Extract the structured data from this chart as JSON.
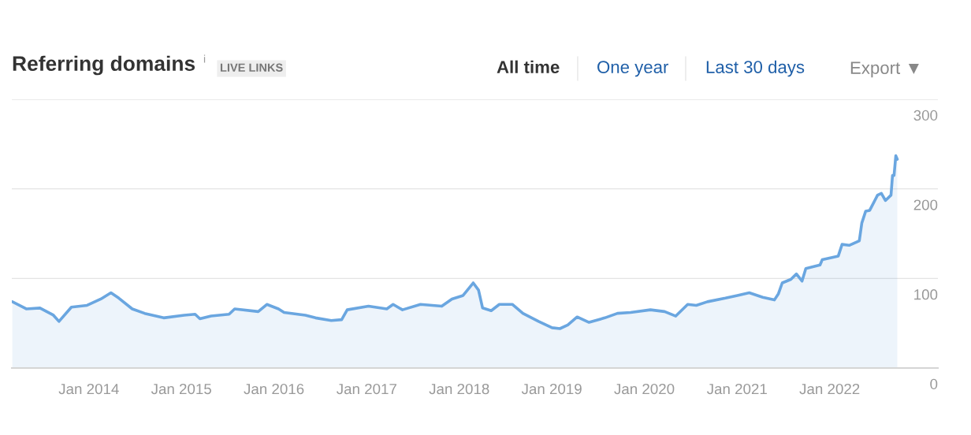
{
  "chart_data": {
    "type": "area",
    "title": "Referring domains",
    "annotations": [
      "i",
      "LIVE LINKS",
      "All time",
      "One year",
      "Last 30 days",
      "Export ▼"
    ],
    "x": [
      "2013-03-05",
      "2013-04-29",
      "2013-06-22",
      "2013-08-14",
      "2013-09-05",
      "2013-10-24",
      "2013-12-25",
      "2014-02-17",
      "2014-03-29",
      "2014-04-29",
      "2014-06-21",
      "2014-08-09",
      "2014-10-23",
      "2015-01-12",
      "2015-02-24",
      "2015-03-15",
      "2015-04-28",
      "2015-07-08",
      "2015-07-30",
      "2015-10-31",
      "2015-12-04",
      "2016-01-19",
      "2016-02-10",
      "2016-05-04",
      "2016-06-13",
      "2016-08-14",
      "2016-09-24",
      "2016-10-16",
      "2017-01-08",
      "2017-03-21",
      "2017-04-15",
      "2017-05-22",
      "2017-08-01",
      "2017-10-24",
      "2017-12-03",
      "2018-01-16",
      "2018-02-25",
      "2018-03-18",
      "2018-04-03",
      "2018-05-07",
      "2018-06-08",
      "2018-07-30",
      "2018-09-09",
      "2018-11-10",
      "2019-01-02",
      "2019-02-02",
      "2019-03-05",
      "2019-04-11",
      "2019-05-28",
      "2019-07-29",
      "2019-09-17",
      "2019-11-08",
      "2020-01-25",
      "2020-03-21",
      "2020-05-04",
      "2020-06-20",
      "2020-07-24",
      "2020-09-06",
      "2020-11-16",
      "2021-01-02",
      "2021-02-18",
      "2021-04-12",
      "2021-05-28",
      "2021-06-13",
      "2021-06-28",
      "2021-08-01",
      "2021-08-23",
      "2021-09-14",
      "2021-09-29",
      "2021-11-24",
      "2021-12-03",
      "2022-02-04",
      "2022-02-19",
      "2022-03-19",
      "2022-04-28",
      "2022-05-08",
      "2022-05-23",
      "2022-06-08",
      "2022-07-09",
      "2022-07-24",
      "2022-08-09",
      "2022-08-31",
      "2022-09-06",
      "2022-09-12",
      "2022-09-19",
      "2022-09-25"
    ],
    "series": [
      {
        "color": "#6aa6e0",
        "values": [
          74,
          66,
          67,
          59,
          52,
          68,
          70,
          77,
          84,
          78,
          66,
          61,
          56,
          59,
          60,
          55,
          58,
          60,
          66,
          63,
          71,
          66,
          62,
          59,
          56,
          53,
          54,
          65,
          69,
          66,
          71,
          65,
          71,
          69,
          77,
          81,
          95,
          87,
          67,
          64,
          71,
          71,
          61,
          52,
          45,
          44,
          48,
          57,
          51,
          56,
          61,
          62,
          65,
          63,
          58,
          71,
          70,
          74,
          78,
          81,
          84,
          79,
          76,
          83,
          95,
          99,
          105,
          97,
          111,
          115,
          121,
          125,
          138,
          137,
          142,
          162,
          175,
          176,
          193,
          195,
          187,
          193,
          215,
          215,
          237,
          233
        ]
      }
    ],
    "xlim": [
      "2013-03-03",
      "2023-03-04"
    ],
    "xticks": [
      {
        "value": "2014-01-01",
        "label": "Jan 2014"
      },
      {
        "value": "2015-01-01",
        "label": "Jan 2015"
      },
      {
        "value": "2016-01-01",
        "label": "Jan 2016"
      },
      {
        "value": "2017-01-01",
        "label": "Jan 2017"
      },
      {
        "value": "2018-01-01",
        "label": "Jan 2018"
      },
      {
        "value": "2019-01-01",
        "label": "Jan 2019"
      },
      {
        "value": "2020-01-01",
        "label": "Jan 2020"
      },
      {
        "value": "2021-01-01",
        "label": "Jan 2021"
      },
      {
        "value": "2022-01-01",
        "label": "Jan 2022"
      }
    ],
    "ylim": [
      0,
      300
    ],
    "yticks": [
      0,
      100,
      200,
      300
    ],
    "grid": "y"
  }
}
